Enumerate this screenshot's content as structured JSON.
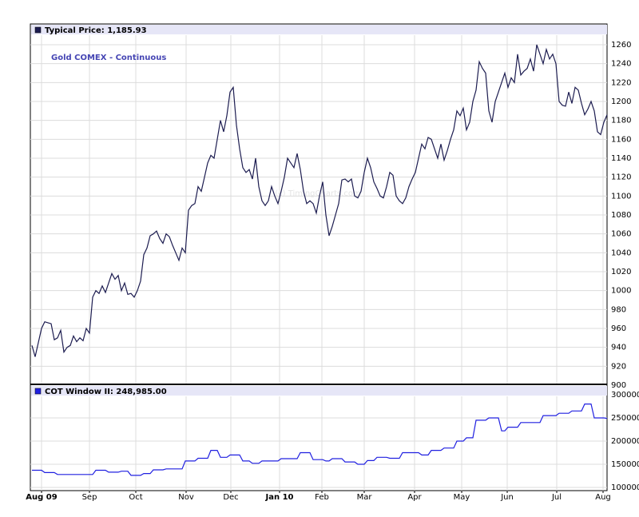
{
  "chart_data": [
    {
      "type": "line",
      "title": "Gold COMEX - Continuous",
      "header": "Typical Price: 1,185.93",
      "watermark": "(c) TimingCharts.com",
      "series": [
        {
          "name": "Typical Price",
          "color": "#1c1c50",
          "values": [
            942,
            930,
            945,
            960,
            967,
            966,
            965,
            948,
            950,
            958,
            935,
            940,
            942,
            952,
            946,
            950,
            947,
            960,
            955,
            993,
            1000,
            997,
            1005,
            998,
            1008,
            1018,
            1012,
            1016,
            1000,
            1008,
            996,
            997,
            993,
            1000,
            1010,
            1038,
            1045,
            1058,
            1060,
            1063,
            1055,
            1050,
            1060,
            1057,
            1048,
            1040,
            1032,
            1045,
            1040,
            1085,
            1090,
            1092,
            1110,
            1105,
            1120,
            1135,
            1143,
            1140,
            1160,
            1180,
            1168,
            1185,
            1210,
            1215,
            1175,
            1150,
            1130,
            1125,
            1128,
            1118,
            1140,
            1110,
            1095,
            1090,
            1095,
            1110,
            1100,
            1092,
            1105,
            1120,
            1140,
            1135,
            1130,
            1145,
            1128,
            1105,
            1092,
            1095,
            1092,
            1082,
            1100,
            1115,
            1080,
            1058,
            1068,
            1080,
            1092,
            1117,
            1118,
            1115,
            1118,
            1100,
            1098,
            1105,
            1125,
            1140,
            1130,
            1115,
            1108,
            1100,
            1098,
            1110,
            1125,
            1122,
            1100,
            1095,
            1092,
            1098,
            1110,
            1118,
            1125,
            1140,
            1155,
            1150,
            1162,
            1160,
            1150,
            1140,
            1155,
            1138,
            1148,
            1160,
            1170,
            1190,
            1185,
            1193,
            1170,
            1178,
            1200,
            1212,
            1242,
            1235,
            1230,
            1190,
            1178,
            1200,
            1210,
            1220,
            1230,
            1215,
            1225,
            1220,
            1250,
            1228,
            1232,
            1235,
            1245,
            1232,
            1260,
            1250,
            1240,
            1255,
            1245,
            1250,
            1240,
            1200,
            1196,
            1195,
            1210,
            1198,
            1215,
            1212,
            1198,
            1186,
            1192,
            1200,
            1190,
            1168,
            1165,
            1178,
            1185.93
          ]
        }
      ],
      "xlim": [
        0,
        180
      ],
      "ylim": [
        900,
        1270
      ],
      "yticks": [
        900,
        920,
        940,
        960,
        980,
        1000,
        1020,
        1040,
        1060,
        1080,
        1100,
        1120,
        1140,
        1160,
        1180,
        1200,
        1220,
        1240,
        1260
      ],
      "grid": true
    },
    {
      "type": "line",
      "header": "COT Window II: 248,985.00",
      "series": [
        {
          "name": "COT Window II",
          "color": "#2020e0",
          "values": [
            137000,
            137000,
            137000,
            137000,
            132000,
            132000,
            132000,
            132000,
            128000,
            128000,
            128000,
            128000,
            128000,
            128000,
            128000,
            128000,
            128000,
            128000,
            128000,
            128000,
            137000,
            137000,
            137000,
            137000,
            133000,
            133000,
            133000,
            133000,
            135000,
            135000,
            135000,
            126000,
            126000,
            126000,
            126000,
            130000,
            130000,
            130000,
            138000,
            138000,
            138000,
            138000,
            140000,
            140000,
            140000,
            140000,
            140000,
            140000,
            157000,
            157000,
            157000,
            157000,
            163000,
            163000,
            163000,
            163000,
            180000,
            180000,
            180000,
            165000,
            165000,
            165000,
            170000,
            170000,
            170000,
            170000,
            157000,
            157000,
            157000,
            152000,
            152000,
            152000,
            157000,
            157000,
            157000,
            157000,
            157000,
            157000,
            162000,
            162000,
            162000,
            162000,
            162000,
            162000,
            175000,
            175000,
            175000,
            175000,
            160000,
            160000,
            160000,
            160000,
            157000,
            157000,
            162000,
            162000,
            162000,
            162000,
            155000,
            155000,
            155000,
            155000,
            150000,
            150000,
            150000,
            158000,
            158000,
            158000,
            165000,
            165000,
            165000,
            165000,
            163000,
            163000,
            163000,
            163000,
            175000,
            175000,
            175000,
            175000,
            175000,
            175000,
            170000,
            170000,
            170000,
            180000,
            180000,
            180000,
            180000,
            185000,
            185000,
            185000,
            185000,
            200000,
            200000,
            200000,
            207000,
            207000,
            207000,
            245000,
            245000,
            245000,
            245000,
            250000,
            250000,
            250000,
            250000,
            222000,
            222000,
            230000,
            230000,
            230000,
            230000,
            240000,
            240000,
            240000,
            240000,
            240000,
            240000,
            240000,
            255000,
            255000,
            255000,
            255000,
            255000,
            260000,
            260000,
            260000,
            260000,
            265000,
            265000,
            265000,
            265000,
            280000,
            280000,
            280000,
            250000,
            250000,
            250000,
            250000,
            248985
          ]
        }
      ],
      "xlim": [
        0,
        180
      ],
      "ylim": [
        100000,
        300000
      ],
      "yticks": [
        100000,
        150000,
        200000,
        250000,
        300000
      ],
      "xticks": [
        {
          "value": 3,
          "label": "Aug 09"
        },
        {
          "value": 18,
          "label": "Sep"
        },
        {
          "value": 32.5,
          "label": "Oct"
        },
        {
          "value": 48.25,
          "label": "Nov"
        },
        {
          "value": 62.25,
          "label": "Dec"
        },
        {
          "value": 77.5,
          "label": "Jan 10"
        },
        {
          "value": 90.75,
          "label": "Feb"
        },
        {
          "value": 104,
          "label": "Mar"
        },
        {
          "value": 119.75,
          "label": "Apr"
        },
        {
          "value": 134.5,
          "label": "May"
        },
        {
          "value": 148.75,
          "label": "Jun"
        },
        {
          "value": 164.25,
          "label": "Jul"
        },
        {
          "value": 178.75,
          "label": "Aug"
        }
      ],
      "grid": true
    }
  ]
}
